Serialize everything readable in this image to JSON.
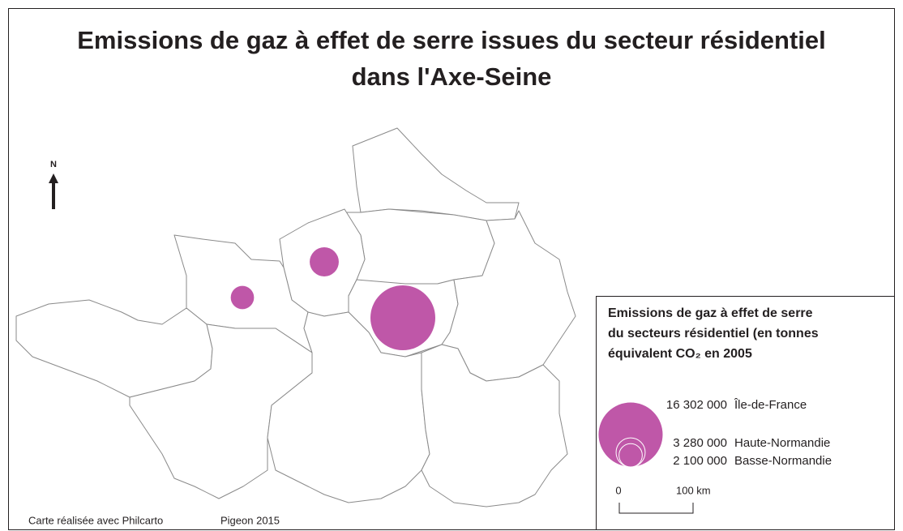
{
  "title": [
    "Emissions de gaz à effet de serre issues du secteur résidentiel",
    "dans l'Axe-Seine"
  ],
  "north": "N",
  "legend": {
    "title": [
      "Emissions de gaz à effet de serre",
      "du secteurs résidentiel (en tonnes",
      "équivalent CO₂ en 2005"
    ],
    "color": "#bf57a8",
    "entries": [
      {
        "name": "Île-de-France",
        "value": 16302000,
        "value_label": "16 302 000"
      },
      {
        "name": "Haute-Normandie",
        "value": 3280000,
        "value_label": "3 280 000"
      },
      {
        "name": "Basse-Normandie",
        "value": 2100000,
        "value_label": "2 100 000"
      }
    ]
  },
  "scale": [
    "0",
    "100 km"
  ],
  "credits": [
    "Carte réalisée avec Philcarto",
    "Pigeon 2015"
  ]
}
